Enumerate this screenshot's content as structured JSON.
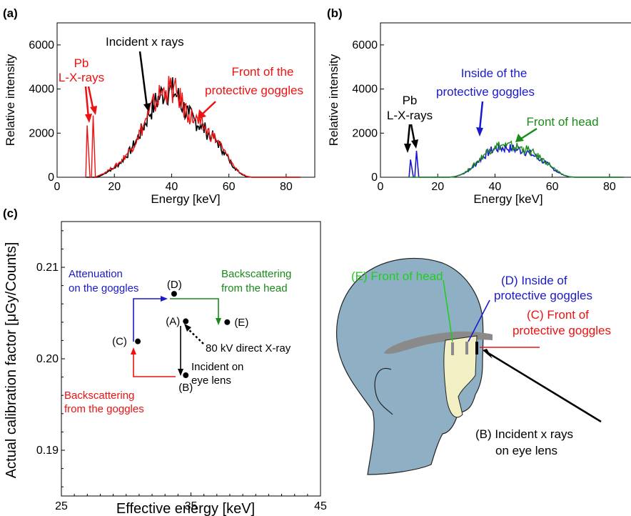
{
  "colors": {
    "red": "#ee1111",
    "blue": "#1a1acc",
    "green": "#1a8a1a",
    "brightgreen": "#22cc22",
    "black": "#000000",
    "head": "#8fb0c4",
    "goggle": "#f2efc4",
    "band": "#8a8a8a"
  },
  "panels": {
    "a": {
      "label": "(a)"
    },
    "b": {
      "label": "(b)"
    },
    "c": {
      "label": "(c)"
    }
  },
  "chart_data": [
    {
      "type": "line",
      "title": "",
      "xlabel": "Energy [keV]",
      "ylabel": "Relative intensity",
      "xlim": [
        0,
        90
      ],
      "ylim": [
        0,
        7000
      ],
      "xticks": [
        0,
        20,
        40,
        60,
        80
      ],
      "yticks": [
        0,
        2000,
        4000,
        6000
      ],
      "x": [
        10.0,
        10.5,
        11.5,
        12.0,
        12.6,
        13.4,
        14,
        16,
        18,
        20,
        22,
        24,
        26,
        28,
        30,
        32,
        34,
        36,
        38,
        40,
        42,
        44,
        46,
        48,
        50,
        52,
        54,
        56,
        58,
        60,
        62,
        64,
        66,
        68,
        70,
        75,
        80,
        85
      ],
      "series": [
        {
          "name": "Incident x rays",
          "values": [
            0,
            0,
            0,
            0,
            0,
            0,
            0,
            120,
            280,
            420,
            640,
            950,
            1280,
            1750,
            2250,
            2850,
            3300,
            3700,
            3900,
            3950,
            3700,
            3200,
            2800,
            2600,
            2350,
            2100,
            1850,
            1600,
            1200,
            800,
            430,
            180,
            40,
            0,
            0,
            0,
            0,
            0
          ]
        },
        {
          "name": "Front of the protective goggles",
          "values": [
            0,
            2350,
            0,
            0,
            2800,
            0,
            50,
            160,
            330,
            470,
            690,
            1000,
            1330,
            1800,
            2300,
            2900,
            3350,
            3750,
            3950,
            4000,
            3750,
            3250,
            2850,
            2650,
            2400,
            2150,
            1900,
            1650,
            1250,
            850,
            460,
            200,
            50,
            0,
            0,
            0,
            0,
            0
          ]
        }
      ],
      "annotations": [
        "Incident x rays",
        "Pb",
        "L-X-rays",
        "Front of the",
        "protective goggles"
      ]
    },
    {
      "type": "line",
      "title": "",
      "xlabel": "Energy [keV]",
      "ylabel": "Relative intensity",
      "xlim": [
        0,
        90
      ],
      "ylim": [
        0,
        7000
      ],
      "xticks": [
        0,
        20,
        40,
        60,
        80
      ],
      "yticks": [
        0,
        2000,
        4000,
        6000
      ],
      "x": [
        10.0,
        10.5,
        11.5,
        12.0,
        12.6,
        13.4,
        14,
        16,
        18,
        20,
        22,
        24,
        26,
        28,
        30,
        32,
        34,
        36,
        38,
        40,
        42,
        44,
        46,
        48,
        50,
        52,
        54,
        56,
        58,
        60,
        62,
        64,
        66,
        68,
        70,
        75,
        80,
        85
      ],
      "series": [
        {
          "name": "Inside of the protective goggles",
          "values": [
            0,
            800,
            0,
            0,
            1200,
            0,
            0,
            0,
            0,
            0,
            0,
            0,
            30,
            110,
            240,
            430,
            700,
            950,
            1150,
            1300,
            1330,
            1320,
            1300,
            1260,
            1200,
            1100,
            950,
            800,
            620,
            420,
            230,
            90,
            20,
            0,
            0,
            0,
            0,
            0
          ]
        },
        {
          "name": "Front of head",
          "values": [
            0,
            0,
            0,
            0,
            0,
            0,
            0,
            0,
            0,
            0,
            0,
            0,
            30,
            120,
            260,
            460,
            740,
            1000,
            1250,
            1400,
            1450,
            1430,
            1400,
            1360,
            1300,
            1200,
            1030,
            860,
            680,
            460,
            250,
            100,
            25,
            0,
            0,
            0,
            0,
            0
          ]
        }
      ],
      "annotations": [
        "Pb",
        "L-X-rays",
        "Inside of the",
        "protective goggles",
        "Front of head"
      ]
    },
    {
      "type": "scatter",
      "title": "",
      "xlabel": "Effective energy [keV]",
      "ylabel": "Actual calibration factor [μGy/Counts]",
      "xlim": [
        25,
        45
      ],
      "ylim": [
        0.185,
        0.215
      ],
      "xticks": [
        25,
        35,
        45
      ],
      "yticks": [
        0.19,
        0.2,
        0.21
      ],
      "points": [
        {
          "label": "(A)",
          "x": 34.6,
          "y": 0.2041
        },
        {
          "label": "(B)",
          "x": 34.6,
          "y": 0.1982
        },
        {
          "label": "(C)",
          "x": 30.9,
          "y": 0.2019
        },
        {
          "label": "(D)",
          "x": 33.7,
          "y": 0.2071
        },
        {
          "label": "(E)",
          "x": 37.8,
          "y": 0.204
        }
      ],
      "annotations": [
        "Attenuation",
        "on the goggles",
        "Backscattering",
        "from the head",
        "80 kV direct X-ray",
        "Incident on",
        "eye lens",
        "Backscattering",
        "from the goggles"
      ]
    }
  ],
  "diagram": {
    "labels": {
      "front_head": "(E) Front of head",
      "inside_1": "(D) Inside of",
      "inside_2": "protective goggles",
      "front_goggles_1": "(C) Front of",
      "front_goggles_2": "protective goggles",
      "incident_1": "(B) Incident x rays",
      "incident_2": "on eye lens"
    }
  }
}
